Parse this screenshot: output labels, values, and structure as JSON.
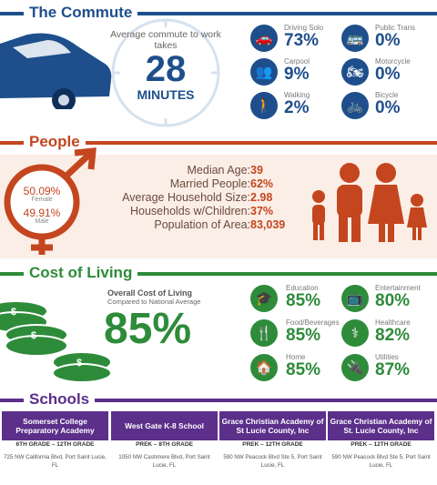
{
  "colors": {
    "blue": "#1e4f8c",
    "orange": "#c4461f",
    "green": "#2e8b3a",
    "purple": "#5b2f8a",
    "peach": "#fbeee6"
  },
  "commute": {
    "title": "The Commute",
    "intro": "Average commute to work takes",
    "minutes": "28",
    "unit": "MINUTES",
    "stats": [
      {
        "label": "Driving Solo",
        "value": "73%",
        "icon": "car-icon"
      },
      {
        "label": "Public Trans",
        "value": "0%",
        "icon": "bus-icon"
      },
      {
        "label": "Carpool",
        "value": "9%",
        "icon": "group-icon"
      },
      {
        "label": "Motorcycle",
        "value": "0%",
        "icon": "motorcycle-icon"
      },
      {
        "label": "Walking",
        "value": "2%",
        "icon": "walking-icon"
      },
      {
        "label": "Bicycle",
        "value": "0%",
        "icon": "bicycle-icon"
      }
    ]
  },
  "people": {
    "title": "People",
    "female_pct": "50.09%",
    "female_label": "Female",
    "male_pct": "49.91%",
    "male_label": "Male",
    "rows": [
      {
        "label": "Median Age:",
        "value": "39"
      },
      {
        "label": "Married People:",
        "value": "62%"
      },
      {
        "label": "Average Household Size:",
        "value": "2.98"
      },
      {
        "label": "Households w/Children:",
        "value": "37%"
      },
      {
        "label": "Population of Area:",
        "value": "83,039"
      }
    ]
  },
  "cost": {
    "title": "Cost of Living",
    "overall_label": "Overall Cost of Living",
    "overall_sub": "Compared to National Average",
    "overall_value": "85%",
    "stats": [
      {
        "label": "Education",
        "value": "85%",
        "icon": "graduation-cap-icon"
      },
      {
        "label": "Entertainment",
        "value": "80%",
        "icon": "tv-icon"
      },
      {
        "label": "Food/Beverages",
        "value": "85%",
        "icon": "utensils-icon"
      },
      {
        "label": "Healthcare",
        "value": "82%",
        "icon": "doctor-icon"
      },
      {
        "label": "Home",
        "value": "85%",
        "icon": "home-icon"
      },
      {
        "label": "Utilities",
        "value": "87%",
        "icon": "plug-icon"
      }
    ]
  },
  "schools": {
    "title": "Schools",
    "items": [
      {
        "name": "Somerset College Preparatory Academy",
        "grades": "6TH GRADE – 12TH GRADE",
        "address": "725 NW California Blvd, Port Saint Lucie, FL"
      },
      {
        "name": "West Gate K-8 School",
        "grades": "PREK – 8TH GRADE",
        "address": "1050 NW Cashmere Blvd, Port Saint Lucie, FL"
      },
      {
        "name": "Grace Christian Academy of St Lucie County, Inc",
        "grades": "PREK – 12TH GRADE",
        "address": "590 NW Peacock Blvd Ste 5, Port Saint Lucie, FL"
      },
      {
        "name": "Grace Christian Academy of St. Lucie County, Inc",
        "grades": "PREK – 12TH GRADE",
        "address": "590 NW Peacock Blvd Ste 5, Port Saint Lucie, FL"
      }
    ]
  }
}
